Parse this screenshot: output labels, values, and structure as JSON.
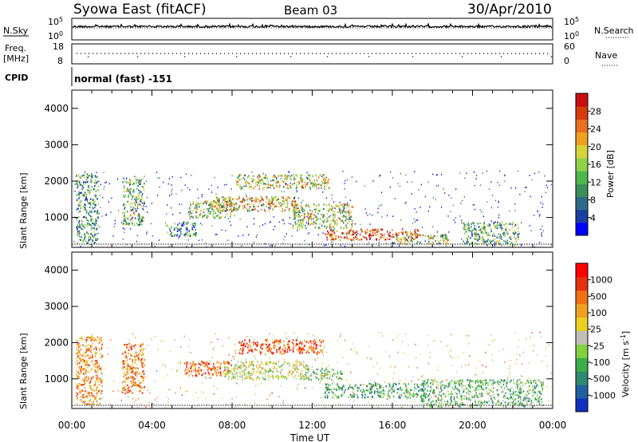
{
  "header": {
    "station": "Syowa East (fitACF)",
    "beam": "Beam 03",
    "date": "30/Apr/2010"
  },
  "top_panels": {
    "nsky_label": "N.Sky",
    "nsky_ticks": [
      "10^5",
      "10^0"
    ],
    "nsearch_label": "N.Search",
    "nsearch_ticks": [
      "10^5",
      "10^0"
    ],
    "freq_label_line1": "Freq.",
    "freq_label_line2": "[MHz]",
    "freq_ticks": [
      "18",
      "8"
    ],
    "nave_label": "Nave",
    "nave_ticks": [
      "60",
      "0"
    ],
    "cpid_label": "CPID",
    "cpid_value": "normal (fast) -151"
  },
  "chart_data": [
    {
      "type": "heatmap",
      "parameter": "power",
      "ylabel": "Slant Range [km]",
      "ylim": [
        180,
        4500
      ],
      "yticks": [
        "4000",
        "3000",
        "2000",
        "1000"
      ],
      "colorbar": {
        "label": "Power [dB]",
        "ticks": [
          "28",
          "24",
          "20",
          "16",
          "12",
          "8",
          "4"
        ],
        "range": [
          0,
          30
        ],
        "colors": [
          "#0000ff",
          "#1a3fa0",
          "#2e6b8a",
          "#3c8f5a",
          "#4db84a",
          "#8fd14a",
          "#d4d43a",
          "#f0a020",
          "#e87020",
          "#d83a10",
          "#c81010"
        ]
      },
      "echo_regions": [
        {
          "t0": 0.2,
          "t1": 1.3,
          "r0": 300,
          "r1": 2200,
          "level": 0.35
        },
        {
          "t0": 2.5,
          "t1": 3.6,
          "r0": 800,
          "r1": 2100,
          "level": 0.4
        },
        {
          "t0": 4.7,
          "t1": 6.2,
          "r0": 500,
          "r1": 900,
          "level": 0.3
        },
        {
          "t0": 5.8,
          "t1": 8.2,
          "r0": 1000,
          "r1": 1500,
          "level": 0.45
        },
        {
          "t0": 7.0,
          "t1": 11.3,
          "r0": 1200,
          "r1": 1600,
          "level": 0.65
        },
        {
          "t0": 8.2,
          "t1": 12.8,
          "r0": 1800,
          "r1": 2200,
          "level": 0.55
        },
        {
          "t0": 11.0,
          "t1": 14.0,
          "r0": 700,
          "r1": 1400,
          "level": 0.5
        },
        {
          "t0": 12.6,
          "t1": 17.3,
          "r0": 400,
          "r1": 700,
          "level": 0.85
        },
        {
          "t0": 16.0,
          "t1": 18.8,
          "r0": 300,
          "r1": 550,
          "level": 0.5
        },
        {
          "t0": 19.5,
          "t1": 22.3,
          "r0": 250,
          "r1": 900,
          "level": 0.4
        }
      ]
    },
    {
      "type": "heatmap",
      "parameter": "velocity",
      "ylabel": "Slant Range [km]",
      "ylim": [
        180,
        4500
      ],
      "yticks": [
        "4000",
        "3000",
        "2000",
        "1000"
      ],
      "xlabel": "Time UT",
      "xticks": [
        "00:00",
        "04:00",
        "08:00",
        "12:00",
        "16:00",
        "20:00",
        "00:00"
      ],
      "colorbar": {
        "label": "Velocity [m s^-1]",
        "ticks": [
          "1000",
          "500",
          "100",
          "25",
          "-25",
          "-100",
          "-500",
          "-1000"
        ],
        "colors": [
          "#1030c0",
          "#2060a0",
          "#2e8a70",
          "#3cae48",
          "#80d040",
          "#c0c0b8",
          "#e8d020",
          "#f0a020",
          "#f07010",
          "#e83010",
          "#ff0000"
        ]
      },
      "echo_regions": [
        {
          "t0": 0.2,
          "t1": 1.5,
          "r0": 300,
          "r1": 2200,
          "level": 0.7
        },
        {
          "t0": 2.5,
          "t1": 3.6,
          "r0": 600,
          "r1": 2000,
          "level": 0.75
        },
        {
          "t0": 5.6,
          "t1": 8.0,
          "r0": 1100,
          "r1": 1500,
          "level": 0.8
        },
        {
          "t0": 7.6,
          "t1": 11.8,
          "r0": 1000,
          "r1": 1500,
          "level": 0.5
        },
        {
          "t0": 8.3,
          "t1": 12.6,
          "r0": 1700,
          "r1": 2100,
          "level": 0.85
        },
        {
          "t0": 11.5,
          "t1": 13.5,
          "r0": 1000,
          "r1": 1300,
          "level": 0.4
        },
        {
          "t0": 12.6,
          "t1": 17.6,
          "r0": 500,
          "r1": 900,
          "level": 0.3
        },
        {
          "t0": 17.4,
          "t1": 23.5,
          "r0": 250,
          "r1": 1000,
          "level": 0.35
        }
      ]
    }
  ]
}
